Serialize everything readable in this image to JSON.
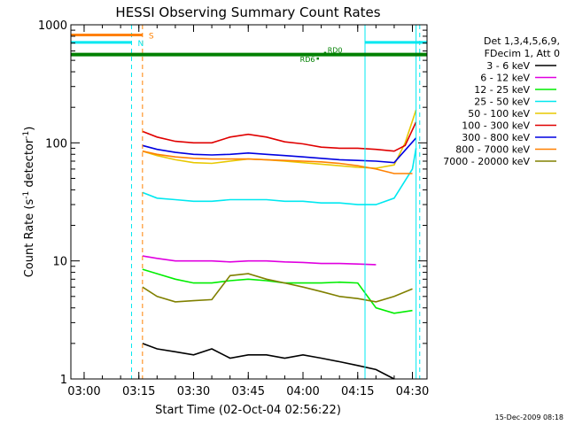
{
  "chart_data": {
    "type": "line",
    "title": "HESSI Observing Summary Count Rates",
    "xlabel": "Start Time (02-Oct-04 02:56:22)",
    "ylabel_parts": [
      "Count Rate (s",
      "-1",
      " detector",
      "-1",
      ")"
    ],
    "xlim": [
      "02:56:22",
      "04:34:00"
    ],
    "ylim": [
      1,
      1000
    ],
    "yscale": "log",
    "x_ticks": [
      "03:00",
      "03:15",
      "03:30",
      "03:45",
      "04:00",
      "04:15",
      "04:30"
    ],
    "y_ticks": [
      "1",
      "10",
      "100",
      "1000"
    ],
    "legend_header": [
      "Det 1,3,4,5,6,9,",
      "FDecim 1, Att 0"
    ],
    "legend_position": "right",
    "series": [
      {
        "name": "3 - 6 keV",
        "color": "#000000",
        "values": [
          [
            "03:16",
            2.0
          ],
          [
            "03:20",
            1.8
          ],
          [
            "03:25",
            1.7
          ],
          [
            "03:30",
            1.6
          ],
          [
            "03:35",
            1.8
          ],
          [
            "03:40",
            1.5
          ],
          [
            "03:45",
            1.6
          ],
          [
            "03:50",
            1.6
          ],
          [
            "03:55",
            1.5
          ],
          [
            "04:00",
            1.6
          ],
          [
            "04:05",
            1.5
          ],
          [
            "04:10",
            1.4
          ],
          [
            "04:15",
            1.3
          ],
          [
            "04:20",
            1.2
          ],
          [
            "04:25",
            1.0
          ]
        ]
      },
      {
        "name": "6 - 12 keV",
        "color": "#e000e0",
        "values": [
          [
            "03:16",
            11
          ],
          [
            "03:20",
            10.5
          ],
          [
            "03:25",
            10
          ],
          [
            "03:30",
            10
          ],
          [
            "03:35",
            10
          ],
          [
            "03:40",
            9.8
          ],
          [
            "03:45",
            10
          ],
          [
            "03:50",
            10
          ],
          [
            "03:55",
            9.8
          ],
          [
            "04:00",
            9.7
          ],
          [
            "04:05",
            9.5
          ],
          [
            "04:10",
            9.5
          ],
          [
            "04:15",
            9.4
          ],
          [
            "04:20",
            9.3
          ]
        ]
      },
      {
        "name": "12 - 25 keV",
        "color": "#00ee00",
        "values": [
          [
            "03:16",
            8.5
          ],
          [
            "03:20",
            7.8
          ],
          [
            "03:25",
            7.0
          ],
          [
            "03:30",
            6.5
          ],
          [
            "03:35",
            6.5
          ],
          [
            "03:40",
            6.8
          ],
          [
            "03:45",
            7.0
          ],
          [
            "03:50",
            6.8
          ],
          [
            "03:55",
            6.5
          ],
          [
            "04:00",
            6.5
          ],
          [
            "04:05",
            6.5
          ],
          [
            "04:10",
            6.6
          ],
          [
            "04:15",
            6.5
          ],
          [
            "04:20",
            4.0
          ],
          [
            "04:25",
            3.6
          ],
          [
            "04:30",
            3.8
          ]
        ]
      },
      {
        "name": "25 - 50 keV",
        "color": "#00e8f0",
        "values": [
          [
            "03:16",
            38
          ],
          [
            "03:20",
            34
          ],
          [
            "03:25",
            33
          ],
          [
            "03:30",
            32
          ],
          [
            "03:35",
            32
          ],
          [
            "03:40",
            33
          ],
          [
            "03:45",
            33
          ],
          [
            "03:50",
            33
          ],
          [
            "03:55",
            32
          ],
          [
            "04:00",
            32
          ],
          [
            "04:05",
            31
          ],
          [
            "04:10",
            31
          ],
          [
            "04:15",
            30
          ],
          [
            "04:20",
            30
          ],
          [
            "04:25",
            34
          ],
          [
            "04:30",
            60
          ],
          [
            "04:31",
            90
          ]
        ]
      },
      {
        "name": "50 - 100 keV",
        "color": "#e8c800",
        "values": [
          [
            "03:16",
            85
          ],
          [
            "03:20",
            78
          ],
          [
            "03:25",
            72
          ],
          [
            "03:30",
            68
          ],
          [
            "03:35",
            67
          ],
          [
            "03:40",
            70
          ],
          [
            "03:45",
            73
          ],
          [
            "03:50",
            72
          ],
          [
            "03:55",
            70
          ],
          [
            "04:00",
            68
          ],
          [
            "04:05",
            66
          ],
          [
            "04:10",
            64
          ],
          [
            "04:15",
            62
          ],
          [
            "04:20",
            61
          ],
          [
            "04:25",
            65
          ],
          [
            "04:28",
            100
          ],
          [
            "04:31",
            190
          ]
        ]
      },
      {
        "name": "100 - 300 keV",
        "color": "#e00000",
        "values": [
          [
            "03:16",
            125
          ],
          [
            "03:20",
            112
          ],
          [
            "03:25",
            103
          ],
          [
            "03:30",
            100
          ],
          [
            "03:35",
            100
          ],
          [
            "03:40",
            112
          ],
          [
            "03:45",
            118
          ],
          [
            "03:50",
            112
          ],
          [
            "03:55",
            102
          ],
          [
            "04:00",
            98
          ],
          [
            "04:05",
            92
          ],
          [
            "04:10",
            90
          ],
          [
            "04:15",
            90
          ],
          [
            "04:20",
            88
          ],
          [
            "04:25",
            85
          ],
          [
            "04:28",
            95
          ],
          [
            "04:31",
            150
          ]
        ]
      },
      {
        "name": "300 - 800 keV",
        "color": "#0000e0",
        "values": [
          [
            "03:16",
            95
          ],
          [
            "03:20",
            88
          ],
          [
            "03:25",
            83
          ],
          [
            "03:30",
            80
          ],
          [
            "03:35",
            79
          ],
          [
            "03:40",
            80
          ],
          [
            "03:45",
            82
          ],
          [
            "03:50",
            80
          ],
          [
            "03:55",
            78
          ],
          [
            "04:00",
            76
          ],
          [
            "04:05",
            74
          ],
          [
            "04:10",
            72
          ],
          [
            "04:15",
            71
          ],
          [
            "04:20",
            70
          ],
          [
            "04:25",
            68
          ],
          [
            "04:31",
            110
          ]
        ]
      },
      {
        "name": "800 - 7000 keV",
        "color": "#ff8000",
        "values": [
          [
            "03:16",
            85
          ],
          [
            "03:20",
            80
          ],
          [
            "03:25",
            76
          ],
          [
            "03:30",
            74
          ],
          [
            "03:35",
            73
          ],
          [
            "03:40",
            73
          ],
          [
            "03:45",
            73
          ],
          [
            "03:50",
            72
          ],
          [
            "03:55",
            71
          ],
          [
            "04:00",
            70
          ],
          [
            "04:05",
            69
          ],
          [
            "04:10",
            67
          ],
          [
            "04:15",
            64
          ],
          [
            "04:20",
            60
          ],
          [
            "04:25",
            55
          ],
          [
            "04:30",
            55
          ]
        ]
      },
      {
        "name": "7000 - 20000 keV",
        "color": "#808000",
        "values": [
          [
            "03:16",
            6.0
          ],
          [
            "03:20",
            5.0
          ],
          [
            "03:25",
            4.5
          ],
          [
            "03:30",
            4.6
          ],
          [
            "03:35",
            4.7
          ],
          [
            "03:40",
            7.5
          ],
          [
            "03:45",
            7.8
          ],
          [
            "03:50",
            7.0
          ],
          [
            "03:55",
            6.5
          ],
          [
            "04:00",
            6.0
          ],
          [
            "04:05",
            5.5
          ],
          [
            "04:10",
            5.0
          ],
          [
            "04:15",
            4.8
          ],
          [
            "04:20",
            4.5
          ],
          [
            "04:25",
            5.0
          ],
          [
            "04:30",
            5.8
          ]
        ]
      }
    ],
    "flags": [
      {
        "label": "S",
        "color": "#ff8000",
        "start": "02:56:22",
        "end": "03:16",
        "y": 820
      },
      {
        "label": "N",
        "color": "#00e8f0",
        "start": "02:56:22",
        "end": "03:13",
        "y": 710
      },
      {
        "label": "",
        "color": "#00e8f0",
        "start": "04:17",
        "end": "04:34",
        "y": 710
      }
    ],
    "saa_band": {
      "color": "#008000",
      "start": "02:56:22",
      "end": "04:34",
      "y": 560
    },
    "annotations": [
      {
        "text": "RD6",
        "time": "04:04",
        "y": 520
      },
      {
        "text": "RD0",
        "time": "04:06",
        "y": 580
      }
    ],
    "vlines": [
      {
        "time": "02:56:22",
        "color": "#00e8f0",
        "style": "solid"
      },
      {
        "time": "03:13",
        "color": "#00e8f0",
        "style": "dash"
      },
      {
        "time": "03:16",
        "color": "#ff8000",
        "style": "dash"
      },
      {
        "time": "04:17",
        "color": "#00e8f0",
        "style": "solid"
      },
      {
        "time": "04:31",
        "color": "#00e8f0",
        "style": "solid"
      },
      {
        "time": "04:32",
        "color": "#00e8f0",
        "style": "dash"
      }
    ],
    "date_stamp": "15-Dec-2009 08:18"
  }
}
